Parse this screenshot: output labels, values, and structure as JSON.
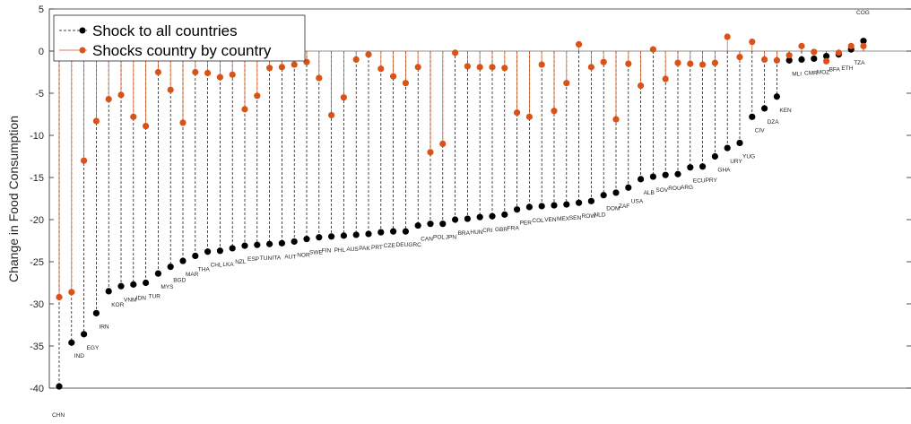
{
  "chart_data": {
    "type": "scatter",
    "title": "",
    "xlabel": "",
    "ylabel": "Change in Food Consumption",
    "ylim": [
      -40,
      5
    ],
    "yticks": [
      5,
      0,
      -5,
      -10,
      -15,
      -20,
      -25,
      -30,
      -35,
      -40
    ],
    "grid": false,
    "legend_position": "top-left",
    "colors": {
      "all": "#000000",
      "single": "#D95319"
    },
    "categories": [
      "CHN",
      "IND",
      "EGY",
      "IRN",
      "KOR",
      "VNM",
      "IDN",
      "TUR",
      "MYS",
      "BGD",
      "MAR",
      "THA",
      "CHL",
      "LKA",
      "NZL",
      "ESP",
      "TUN",
      "ITA",
      "AUT",
      "NOR",
      "SWE",
      "FIN",
      "PHL",
      "AUS",
      "PAK",
      "PRT",
      "CZE",
      "DEU",
      "GRC",
      "CAN",
      "POL",
      "JPN",
      "BRA",
      "HUN",
      "CRI",
      "GBR",
      "FRA",
      "PER",
      "COL",
      "VEN",
      "MEX",
      "SEN",
      "ROW",
      "NLD",
      "DOM",
      "ZAF",
      "USA",
      "ALB",
      "SOV",
      "ROU",
      "ARG",
      "ECU",
      "PRY",
      "GHA",
      "URY",
      "YUG",
      "CIV",
      "DZA",
      "KEN",
      "MLI",
      "CMR",
      "MOZ",
      "BFA",
      "ETH",
      "TZA",
      "COG"
    ],
    "series": [
      {
        "name": "Shock to all countries",
        "values": [
          -39.8,
          -34.6,
          -33.6,
          -31.1,
          -28.5,
          -27.9,
          -27.7,
          -27.5,
          -26.4,
          -25.6,
          -24.9,
          -24.3,
          -23.8,
          -23.7,
          -23.4,
          -23.1,
          -23.0,
          -22.9,
          -22.8,
          -22.6,
          -22.3,
          -22.1,
          -22.0,
          -21.9,
          -21.8,
          -21.7,
          -21.5,
          -21.4,
          -21.4,
          -20.7,
          -20.5,
          -20.5,
          -20.0,
          -19.9,
          -19.7,
          -19.6,
          -19.4,
          -18.8,
          -18.5,
          -18.4,
          -18.3,
          -18.2,
          -18.0,
          -17.8,
          -17.1,
          -16.8,
          -16.2,
          -15.2,
          -14.9,
          -14.7,
          -14.6,
          -13.8,
          -13.7,
          -12.5,
          -11.5,
          -10.9,
          -7.8,
          -6.8,
          -5.4,
          -1.1,
          -1.0,
          -0.9,
          -0.6,
          -0.4,
          0.2,
          1.2
        ]
      },
      {
        "name": "Shocks country by country",
        "values": [
          -29.2,
          -28.6,
          -13.0,
          -8.3,
          -5.7,
          -5.2,
          -7.8,
          -8.9,
          -2.5,
          -4.6,
          -8.5,
          -2.5,
          -2.6,
          -3.1,
          -2.8,
          -6.9,
          -5.3,
          -2.0,
          -1.9,
          -1.6,
          -1.3,
          -3.2,
          -7.6,
          -5.5,
          -1.0,
          -0.4,
          -2.1,
          -3.0,
          -3.8,
          -1.9,
          -12.0,
          -11.0,
          -0.2,
          -1.8,
          -1.9,
          -1.9,
          -2.0,
          -7.3,
          -7.8,
          -1.6,
          -7.1,
          -3.8,
          0.8,
          -1.9,
          -1.3,
          -8.1,
          -1.5,
          -4.1,
          0.2,
          -3.3,
          -1.4,
          -1.5,
          -1.6,
          -1.4,
          1.7,
          -0.7,
          1.1,
          -1.0,
          -1.1,
          -0.5,
          0.6,
          -0.1,
          -1.2,
          -0.2,
          0.6,
          0.6
        ]
      }
    ]
  }
}
